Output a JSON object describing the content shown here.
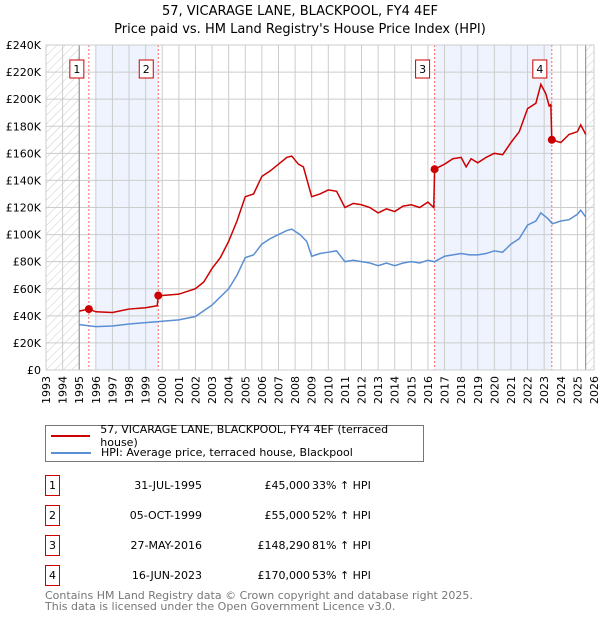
{
  "title": "57, VICARAGE LANE, BLACKPOOL, FY4 4EF",
  "subtitle": "Price paid vs. HM Land Registry's House Price Index (HPI)",
  "chart_data": {
    "type": "line",
    "title": "57, VICARAGE LANE, BLACKPOOL, FY4 4EF — Price paid vs. HM Land Registry's House Price Index (HPI)",
    "xlim": [
      1993,
      2026
    ],
    "ylim": [
      0,
      240000
    ],
    "yticks": [
      0,
      20000,
      40000,
      60000,
      80000,
      100000,
      120000,
      140000,
      160000,
      180000,
      200000,
      220000,
      240000
    ],
    "ytick_labels": [
      "£0",
      "£20K",
      "£40K",
      "£60K",
      "£80K",
      "£100K",
      "£120K",
      "£140K",
      "£160K",
      "£180K",
      "£200K",
      "£220K",
      "£240K"
    ],
    "xticks": [
      1993,
      1994,
      1995,
      1996,
      1997,
      1998,
      1999,
      2000,
      2001,
      2002,
      2003,
      2004,
      2005,
      2006,
      2007,
      2008,
      2009,
      2010,
      2011,
      2012,
      2013,
      2014,
      2015,
      2016,
      2017,
      2018,
      2019,
      2020,
      2021,
      2022,
      2023,
      2024,
      2025,
      2026
    ],
    "grid": true,
    "hatched_ranges": [
      [
        1993,
        1995
      ],
      [
        2025.5,
        2026
      ]
    ],
    "shaded_ranges": [
      [
        1996,
        1999.76
      ],
      [
        2016.4,
        2023.46
      ]
    ],
    "series": [
      {
        "name": "57, VICARAGE LANE, BLACKPOOL, FY4 4EF (terraced house)",
        "color": "#cc0000",
        "x": [
          1995,
          1995.58,
          1996,
          1997,
          1998,
          1999,
          1999.7,
          1999.76,
          2000,
          2001,
          2002,
          2002.5,
          2003,
          2003.5,
          2004,
          2004.5,
          2005,
          2005.5,
          2006,
          2006.5,
          2007,
          2007.5,
          2007.8,
          2008.2,
          2008.5,
          2009,
          2009.5,
          2010,
          2010.5,
          2011,
          2011.5,
          2012,
          2012.5,
          2013,
          2013.5,
          2014,
          2014.5,
          2015,
          2015.5,
          2016,
          2016.35,
          2016.4,
          2017,
          2017.5,
          2018,
          2018.3,
          2018.6,
          2019,
          2019.5,
          2020,
          2020.5,
          2021,
          2021.5,
          2022,
          2022.5,
          2022.8,
          2023.1,
          2023.3,
          2023.4,
          2023.46,
          2024,
          2024.5,
          2025,
          2025.2,
          2025.5
        ],
        "y": [
          43500,
          45000,
          43000,
          42500,
          45000,
          46000,
          47500,
          55000,
          55000,
          56000,
          60000,
          65000,
          75000,
          83000,
          95000,
          110000,
          128000,
          130000,
          143000,
          147000,
          152000,
          157000,
          158000,
          152000,
          150000,
          128000,
          130000,
          133000,
          132000,
          120000,
          123000,
          122000,
          120000,
          116000,
          119000,
          117000,
          121000,
          122000,
          120000,
          124000,
          120000,
          148290,
          152000,
          156000,
          157000,
          150000,
          156000,
          153000,
          157000,
          160000,
          159000,
          168000,
          176000,
          193000,
          197000,
          211000,
          204000,
          195000,
          196000,
          170000,
          168000,
          174000,
          176000,
          181000,
          174000
        ]
      },
      {
        "name": "HPI: Average price, terraced house, Blackpool",
        "color": "#5b8fd4",
        "x": [
          1995,
          1996,
          1997,
          1998,
          1999,
          2000,
          2001,
          2002,
          2003,
          2004,
          2004.5,
          2005,
          2005.5,
          2006,
          2006.5,
          2007,
          2007.5,
          2007.8,
          2008.3,
          2008.7,
          2009,
          2009.5,
          2010,
          2010.5,
          2011,
          2011.5,
          2012,
          2012.5,
          2013,
          2013.5,
          2014,
          2014.5,
          2015,
          2015.5,
          2016,
          2016.4,
          2017,
          2017.5,
          2018,
          2018.5,
          2019,
          2019.5,
          2020,
          2020.5,
          2021,
          2021.5,
          2022,
          2022.5,
          2022.8,
          2023.2,
          2023.5,
          2024,
          2024.5,
          2025,
          2025.2,
          2025.5
        ],
        "y": [
          33500,
          32000,
          32500,
          34000,
          35000,
          36000,
          37000,
          39500,
          48000,
          60000,
          70000,
          83000,
          85000,
          93000,
          97000,
          100000,
          103000,
          104000,
          100000,
          95000,
          84000,
          86000,
          87000,
          88000,
          80000,
          81000,
          80000,
          79000,
          77000,
          79000,
          77000,
          79000,
          80000,
          79000,
          81000,
          80000,
          84000,
          85000,
          86000,
          85000,
          85000,
          86000,
          88000,
          87000,
          93000,
          97000,
          107000,
          110000,
          116000,
          112000,
          108000,
          110000,
          111000,
          115000,
          118000,
          113000
        ]
      }
    ],
    "sales": [
      {
        "label": "1",
        "x": 1995.58,
        "y": 45000
      },
      {
        "label": "2",
        "x": 1999.76,
        "y": 55000
      },
      {
        "label": "3",
        "x": 2016.4,
        "y": 148290
      },
      {
        "label": "4",
        "x": 2023.46,
        "y": 170000
      }
    ]
  },
  "legend": [
    "57, VICARAGE LANE, BLACKPOOL, FY4 4EF (terraced house)",
    "HPI: Average price, terraced house, Blackpool"
  ],
  "transactions": [
    {
      "num": "1",
      "date": "31-JUL-1995",
      "price": "£45,000",
      "hpi": "33% ↑ HPI"
    },
    {
      "num": "2",
      "date": "05-OCT-1999",
      "price": "£55,000",
      "hpi": "52% ↑ HPI"
    },
    {
      "num": "3",
      "date": "27-MAY-2016",
      "price": "£148,290",
      "hpi": "81% ↑ HPI"
    },
    {
      "num": "4",
      "date": "16-JUN-2023",
      "price": "£170,000",
      "hpi": "53% ↑ HPI"
    }
  ],
  "footer": [
    "Contains HM Land Registry data © Crown copyright and database right 2025.",
    "This data is licensed under the Open Government Licence v3.0."
  ]
}
